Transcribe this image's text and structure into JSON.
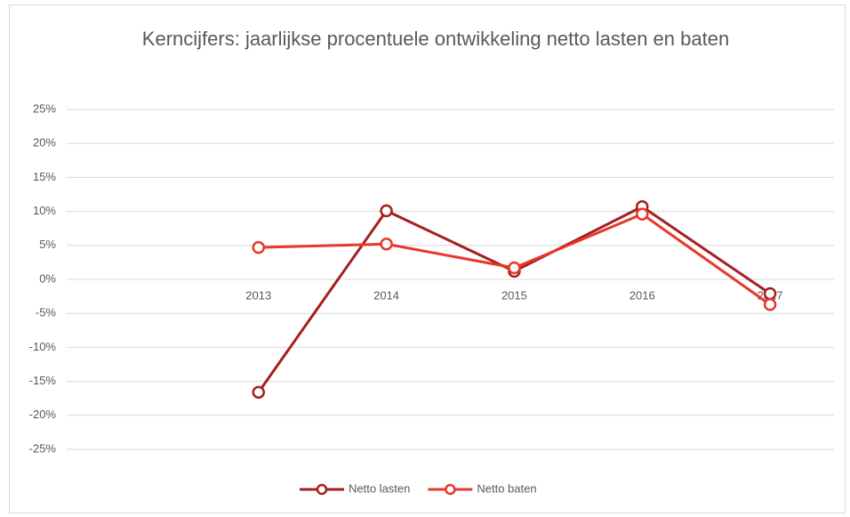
{
  "chart_data": {
    "type": "line",
    "title": "Kerncijfers: jaarlijkse procentuele ontwikkeling netto lasten en baten",
    "categories": [
      null,
      "2013",
      "2014",
      "2015",
      "2016",
      "2017"
    ],
    "series": [
      {
        "name": "Netto lasten",
        "color": "#a3201f",
        "values": [
          null,
          -16.6,
          10.1,
          1.2,
          10.7,
          -2.1
        ]
      },
      {
        "name": "Netto baten",
        "color": "#e8382a",
        "values": [
          null,
          4.7,
          5.2,
          1.7,
          9.6,
          -3.7
        ]
      }
    ],
    "ylim": [
      -25,
      25
    ],
    "yticks": [
      {
        "value": -25,
        "label": "-25%"
      },
      {
        "value": -20,
        "label": "-20%"
      },
      {
        "value": -15,
        "label": "-15%"
      },
      {
        "value": -10,
        "label": "-10%"
      },
      {
        "value": -5,
        "label": "-5%"
      },
      {
        "value": 0,
        "label": "0%"
      },
      {
        "value": 5,
        "label": "5%"
      },
      {
        "value": 10,
        "label": "10%"
      },
      {
        "value": 15,
        "label": "15%"
      },
      {
        "value": 20,
        "label": "20%"
      },
      {
        "value": 25,
        "label": "25%"
      }
    ],
    "grid": true,
    "legend": "bottom"
  }
}
